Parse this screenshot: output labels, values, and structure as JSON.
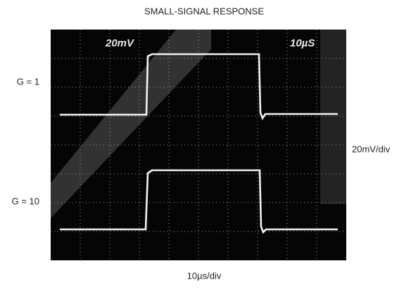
{
  "figure": {
    "title": "SMALL-SIGNAL RESPONSE",
    "trace_labels": [
      "G = 1",
      "G = 10"
    ],
    "vertical_scale": "20mV/div",
    "horizontal_scale": "10µs/div",
    "screen": {
      "vertical_readout": "20mV",
      "horizontal_readout": "10µS"
    }
  }
}
